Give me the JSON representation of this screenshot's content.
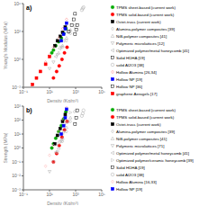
{
  "chart_data": [
    {
      "type": "scatter",
      "title": "a)",
      "x_label": "Density (Kg/m³)",
      "y_label": "Young's Modulus (MPa)",
      "log": true,
      "grid": false,
      "legend": "right",
      "xlim": [
        0.1,
        100000
      ],
      "ylim": [
        0.001,
        1000000
      ],
      "xticks": [
        {
          "value": 0.1,
          "label": "10⁻¹"
        },
        {
          "value": 10,
          "label": "10¹"
        },
        {
          "value": 1000,
          "label": "10³"
        },
        {
          "value": 100000,
          "label": "10⁵"
        }
      ],
      "yticks": [
        {
          "value": 0.001,
          "label": "10⁻³"
        },
        {
          "value": 1,
          "label": "10⁰"
        },
        {
          "value": 1000,
          "label": "10³"
        },
        {
          "value": 1000000,
          "label": "10⁶"
        }
      ],
      "series": [
        {
          "name": "TPMS sheet-based (current work)",
          "color": "#00aa00",
          "marker": "circle",
          "x": [
            15,
            20,
            30,
            50,
            80,
            120,
            180
          ],
          "values": [
            5,
            10,
            30,
            80,
            200,
            600,
            2000
          ]
        },
        {
          "name": "TPMS solid-based (current work)",
          "color": "#ff0000",
          "marker": "circle",
          "x": [
            20,
            35,
            55,
            90,
            140,
            220
          ],
          "values": [
            0.01,
            0.05,
            0.2,
            1,
            5,
            20
          ]
        },
        {
          "name": "Octet-truss (current work)",
          "color": "#000000",
          "marker": "square",
          "x": [
            25,
            40,
            65,
            100,
            160
          ],
          "values": [
            30,
            100,
            300,
            800,
            3000
          ]
        },
        {
          "name": "Alumina-polymer composites [39]",
          "color": "#aaaaaa",
          "marker": "open-diamond",
          "x": [
            100,
            200,
            400,
            800
          ],
          "values": [
            20,
            100,
            600,
            4000
          ]
        },
        {
          "name": "NiB-polymer composites [41]",
          "color": "#aaaaaa",
          "marker": "open-triangle-up",
          "x": [
            50,
            100,
            200,
            400
          ],
          "values": [
            5,
            30,
            200,
            1500
          ]
        },
        {
          "name": "Polymeric microlattices [12]",
          "color": "#aaaaaa",
          "marker": "open-triangle-down",
          "x": [
            10,
            20,
            40,
            80
          ],
          "values": [
            0.1,
            0.5,
            3,
            20
          ]
        },
        {
          "name": "Optimized polymer/metal honeycomb [41]",
          "color": "#aaaaaa",
          "marker": "open-triangle-left",
          "x": [
            30,
            60,
            120,
            250
          ],
          "values": [
            2,
            15,
            100,
            800
          ]
        },
        {
          "name": "Solid HDHA [19]",
          "color": "#000000",
          "marker": "open-square",
          "x": [
            900,
            1100,
            1300
          ],
          "values": [
            500,
            1500,
            5000
          ]
        },
        {
          "name": "solid Al2O3 [38]",
          "color": "#aaaaaa",
          "marker": "open-circle",
          "x": [
            3000,
            3500,
            4000
          ],
          "values": [
            200000,
            300000,
            400000
          ]
        },
        {
          "name": "Hollow Alumina [26,34]",
          "color": "#ff8888",
          "marker": "open-diamond",
          "x": [
            5,
            10,
            20,
            50,
            100,
            200
          ],
          "values": [
            0.5,
            3,
            20,
            200,
            2000,
            20000
          ]
        },
        {
          "name": "Hollow NP [19]",
          "color": "#0000ff",
          "marker": "square",
          "x": [
            80,
            120,
            160,
            200
          ],
          "values": [
            100,
            500,
            2000,
            8000
          ]
        },
        {
          "name": "Hollow NP [36]",
          "color": "#000000",
          "marker": "open-square",
          "x": [
            300,
            500,
            700,
            900
          ],
          "values": [
            1000,
            5000,
            20000,
            80000
          ]
        },
        {
          "name": "graphene Aerogels [17]",
          "color": "#ff0000",
          "marker": "square",
          "x": [
            0.5,
            1,
            2,
            5,
            10
          ],
          "values": [
            0.002,
            0.01,
            0.05,
            0.3,
            2
          ]
        }
      ]
    },
    {
      "type": "scatter",
      "title": "b)",
      "x_label": "Density (Kg/m³)",
      "y_label": "Strength (MPa)",
      "log": true,
      "grid": false,
      "legend": "right",
      "xlim": [
        0.1,
        100000
      ],
      "ylim": [
        0.001,
        1000
      ],
      "xticks": [
        {
          "value": 0.1,
          "label": "10⁻¹"
        },
        {
          "value": 10,
          "label": "10¹"
        },
        {
          "value": 1000,
          "label": "10³"
        },
        {
          "value": 100000,
          "label": "10⁵"
        }
      ],
      "yticks": [
        {
          "value": 0.001,
          "label": "10⁻³"
        },
        {
          "value": 0.01,
          "label": "10⁻²"
        },
        {
          "value": 0.1,
          "label": "10⁻¹"
        },
        {
          "value": 1,
          "label": "10⁰"
        },
        {
          "value": 10,
          "label": "10¹"
        },
        {
          "value": 100,
          "label": "10²"
        },
        {
          "value": 1000,
          "label": "10³"
        }
      ],
      "series": [
        {
          "name": "TPMS sheet-based (current work)",
          "color": "#00aa00",
          "marker": "circle",
          "x": [
            15,
            20,
            30,
            50,
            80,
            120,
            180
          ],
          "values": [
            1,
            2,
            5,
            15,
            40,
            120,
            400
          ]
        },
        {
          "name": "TPMS solid-based (current work)",
          "color": "#ff0000",
          "marker": "circle",
          "x": [
            20,
            35,
            55,
            90,
            140,
            220
          ],
          "values": [
            0.1,
            0.4,
            1.5,
            6,
            20,
            80
          ]
        },
        {
          "name": "Octet-truss (current work)",
          "color": "#000000",
          "marker": "square",
          "x": [
            25,
            40,
            65,
            100,
            160
          ],
          "values": [
            2,
            8,
            25,
            80,
            250
          ]
        },
        {
          "name": "Alumina-polymer composites [39]",
          "color": "#aaaaaa",
          "marker": "open-diamond",
          "x": [
            100,
            200,
            400,
            800
          ],
          "values": [
            3,
            15,
            80,
            400
          ]
        },
        {
          "name": "NiB-polymer composites [41]",
          "color": "#aaaaaa",
          "marker": "open-triangle-up",
          "x": [
            50,
            100,
            200,
            400
          ],
          "values": [
            1,
            5,
            30,
            150
          ]
        },
        {
          "name": "Polymeric microlattices [71]",
          "color": "#aaaaaa",
          "marker": "open-triangle-down",
          "x": [
            10,
            20,
            40,
            80
          ],
          "values": [
            0.02,
            0.1,
            0.5,
            3
          ]
        },
        {
          "name": "Optimized polymer/metal honeycomb [41]",
          "color": "#aaaaaa",
          "marker": "open-triangle-left",
          "x": [
            30,
            60,
            120,
            250
          ],
          "values": [
            0.5,
            3,
            15,
            80
          ]
        },
        {
          "name": "Optimized polymer/ceramic honeycomb [39]",
          "color": "#bbbbbb",
          "marker": "open-triangle-right",
          "x": [
            50,
            100,
            200,
            400
          ],
          "values": [
            2,
            10,
            60,
            350
          ]
        },
        {
          "name": "Solid HDHA [19]",
          "color": "#000000",
          "marker": "open-square",
          "x": [
            900,
            1100,
            1300
          ],
          "values": [
            50,
            150,
            500
          ]
        },
        {
          "name": "solid Al2O3 [38]",
          "color": "#aaaaaa",
          "marker": "open-circle",
          "x": [
            3000,
            3500,
            4000
          ],
          "values": [
            200,
            300,
            500
          ]
        },
        {
          "name": "Hollow Alumina [16,33]",
          "color": "#ffaaaa",
          "marker": "open-diamond",
          "x": [
            5,
            10,
            20,
            50,
            100,
            200
          ],
          "values": [
            0.05,
            0.3,
            1.5,
            15,
            120,
            800
          ]
        },
        {
          "name": "Hollow NP [19]",
          "color": "#0000ff",
          "marker": "square",
          "x": [
            80,
            120,
            160,
            200
          ],
          "values": [
            10,
            40,
            150,
            600
          ]
        }
      ]
    }
  ]
}
